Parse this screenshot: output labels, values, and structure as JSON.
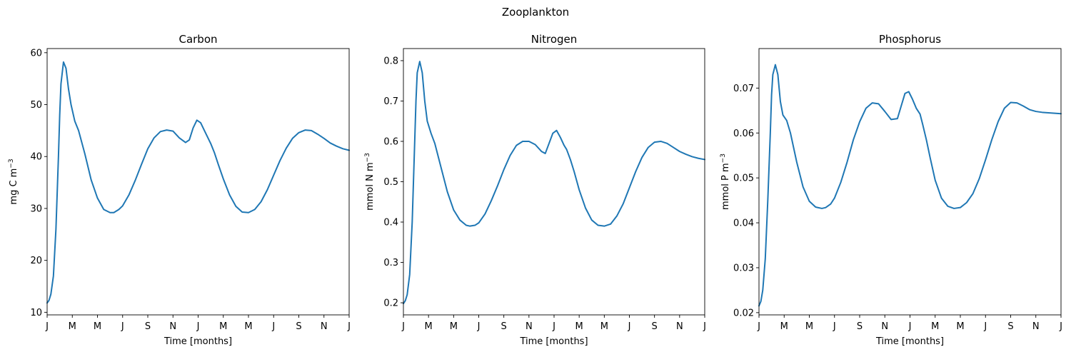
{
  "figure": {
    "title": "Zooplankton"
  },
  "colors": {
    "line": "#1f77b4"
  },
  "chart_data": [
    {
      "type": "line",
      "title": "Carbon",
      "xlabel": "Time [months]",
      "ylabel": "mg C m",
      "ylabel_sup": "−3",
      "x_ticks": [
        "J",
        "M",
        "M",
        "J",
        "S",
        "N",
        "J",
        "M",
        "M",
        "J",
        "S",
        "N",
        "J"
      ],
      "xlim": [
        0,
        24
      ],
      "ylim": [
        9.5,
        60.8
      ],
      "y_ticks": [
        "10",
        "20",
        "30",
        "40",
        "50",
        "60"
      ],
      "grid": false,
      "series": [
        {
          "x": [
            0,
            0.15,
            0.3,
            0.5,
            0.7,
            0.9,
            1.0,
            1.1,
            1.3,
            1.5,
            1.7,
            1.9,
            2.2,
            2.5,
            3.0,
            3.5,
            4.0,
            4.5,
            5.0,
            5.3,
            5.7,
            6.0,
            6.5,
            7.0,
            7.5,
            8.0,
            8.5,
            9.0,
            9.5,
            10.0,
            10.5,
            11.0,
            11.3,
            11.6,
            11.9,
            12.2,
            12.5,
            12.8,
            13.0,
            13.3,
            13.6,
            14.0,
            14.5,
            15.0,
            15.5,
            16.0,
            16.5,
            17.0,
            17.5,
            18.0,
            18.5,
            19.0,
            19.5,
            20.0,
            20.5,
            21.0,
            21.5,
            22.0,
            22.5,
            23.0,
            23.5,
            24.0
          ],
          "y": [
            11.8,
            12.3,
            13.5,
            17,
            26,
            40,
            48,
            54,
            58.2,
            57,
            53,
            50,
            46.8,
            45,
            40.5,
            35.5,
            32,
            29.8,
            29.2,
            29.2,
            29.8,
            30.5,
            32.6,
            35.4,
            38.5,
            41.5,
            43.6,
            44.8,
            45.1,
            44.9,
            43.6,
            42.7,
            43.2,
            45.5,
            47,
            46.5,
            45,
            43.5,
            42.5,
            40.7,
            38.5,
            35.7,
            32.6,
            30.4,
            29.3,
            29.2,
            29.8,
            31.3,
            33.6,
            36.4,
            39.2,
            41.6,
            43.5,
            44.6,
            45.1,
            45,
            44.3,
            43.5,
            42.6,
            42,
            41.5,
            41.2
          ]
        }
      ]
    },
    {
      "type": "line",
      "title": "Nitrogen",
      "xlabel": "Time [months]",
      "ylabel": "mmol N m",
      "ylabel_sup": "−3",
      "x_ticks": [
        "J",
        "M",
        "M",
        "J",
        "S",
        "N",
        "J",
        "M",
        "M",
        "J",
        "S",
        "N",
        "J"
      ],
      "xlim": [
        0,
        24
      ],
      "ylim": [
        0.17,
        0.83
      ],
      "y_ticks": [
        "0.2",
        "0.3",
        "0.4",
        "0.5",
        "0.6",
        "0.7",
        "0.8"
      ],
      "grid": false,
      "series": [
        {
          "x": [
            0,
            0.15,
            0.3,
            0.5,
            0.7,
            0.9,
            1.0,
            1.1,
            1.3,
            1.5,
            1.7,
            1.9,
            2.2,
            2.5,
            3.0,
            3.5,
            4.0,
            4.5,
            5.0,
            5.3,
            5.7,
            6.0,
            6.5,
            7.0,
            7.5,
            8.0,
            8.5,
            9.0,
            9.5,
            10.0,
            10.5,
            11.0,
            11.3,
            11.6,
            11.9,
            12.2,
            12.5,
            12.8,
            13.0,
            13.3,
            13.6,
            14.0,
            14.5,
            15.0,
            15.5,
            16.0,
            16.5,
            17.0,
            17.5,
            18.0,
            18.5,
            19.0,
            19.5,
            20.0,
            20.5,
            21.0,
            21.5,
            22.0,
            22.5,
            23.0,
            23.5,
            24.0
          ],
          "y": [
            0.198,
            0.205,
            0.22,
            0.27,
            0.4,
            0.6,
            0.7,
            0.77,
            0.798,
            0.77,
            0.7,
            0.65,
            0.62,
            0.595,
            0.535,
            0.475,
            0.43,
            0.405,
            0.392,
            0.39,
            0.392,
            0.398,
            0.42,
            0.453,
            0.49,
            0.53,
            0.565,
            0.59,
            0.6,
            0.6,
            0.592,
            0.575,
            0.57,
            0.595,
            0.62,
            0.627,
            0.61,
            0.59,
            0.58,
            0.555,
            0.525,
            0.48,
            0.435,
            0.405,
            0.392,
            0.39,
            0.395,
            0.415,
            0.445,
            0.485,
            0.525,
            0.56,
            0.585,
            0.598,
            0.6,
            0.595,
            0.585,
            0.575,
            0.568,
            0.562,
            0.558,
            0.555
          ]
        }
      ]
    },
    {
      "type": "line",
      "title": "Phosphorus",
      "xlabel": "Time [months]",
      "ylabel": "mmol P m",
      "ylabel_sup": "−3",
      "x_ticks": [
        "J",
        "M",
        "M",
        "J",
        "S",
        "N",
        "J",
        "M",
        "M",
        "J",
        "S",
        "N",
        "J"
      ],
      "xlim": [
        0,
        24
      ],
      "ylim": [
        0.0195,
        0.0788
      ],
      "y_ticks": [
        "0.02",
        "0.03",
        "0.04",
        "0.05",
        "0.06",
        "0.07"
      ],
      "grid": false,
      "series": [
        {
          "x": [
            0,
            0.15,
            0.3,
            0.5,
            0.7,
            0.9,
            1.0,
            1.1,
            1.3,
            1.5,
            1.7,
            1.9,
            2.2,
            2.5,
            3.0,
            3.5,
            4.0,
            4.5,
            5.0,
            5.3,
            5.7,
            6.0,
            6.5,
            7.0,
            7.5,
            8.0,
            8.5,
            9.0,
            9.5,
            10.0,
            10.5,
            11.0,
            11.3,
            11.6,
            11.9,
            12.2,
            12.5,
            12.8,
            13.0,
            13.3,
            13.6,
            14.0,
            14.5,
            15.0,
            15.5,
            16.0,
            16.5,
            17.0,
            17.5,
            18.0,
            18.5,
            19.0,
            19.5,
            20.0,
            20.5,
            21.0,
            21.5,
            22.0,
            22.5,
            23.0,
            23.5,
            24.0
          ],
          "y": [
            0.0215,
            0.0225,
            0.025,
            0.032,
            0.045,
            0.06,
            0.0685,
            0.073,
            0.0752,
            0.073,
            0.067,
            0.064,
            0.0628,
            0.06,
            0.0535,
            0.048,
            0.0448,
            0.0435,
            0.0432,
            0.0434,
            0.0442,
            0.0455,
            0.049,
            0.0535,
            0.0585,
            0.0625,
            0.0655,
            0.0667,
            0.0665,
            0.0648,
            0.063,
            0.0632,
            0.066,
            0.0688,
            0.0692,
            0.0675,
            0.0655,
            0.0642,
            0.062,
            0.0585,
            0.0545,
            0.0495,
            0.0455,
            0.0437,
            0.0432,
            0.0434,
            0.0445,
            0.0465,
            0.0498,
            0.054,
            0.0585,
            0.0625,
            0.0655,
            0.0668,
            0.0667,
            0.066,
            0.0652,
            0.0648,
            0.0646,
            0.0645,
            0.0644,
            0.0643
          ]
        }
      ]
    }
  ]
}
